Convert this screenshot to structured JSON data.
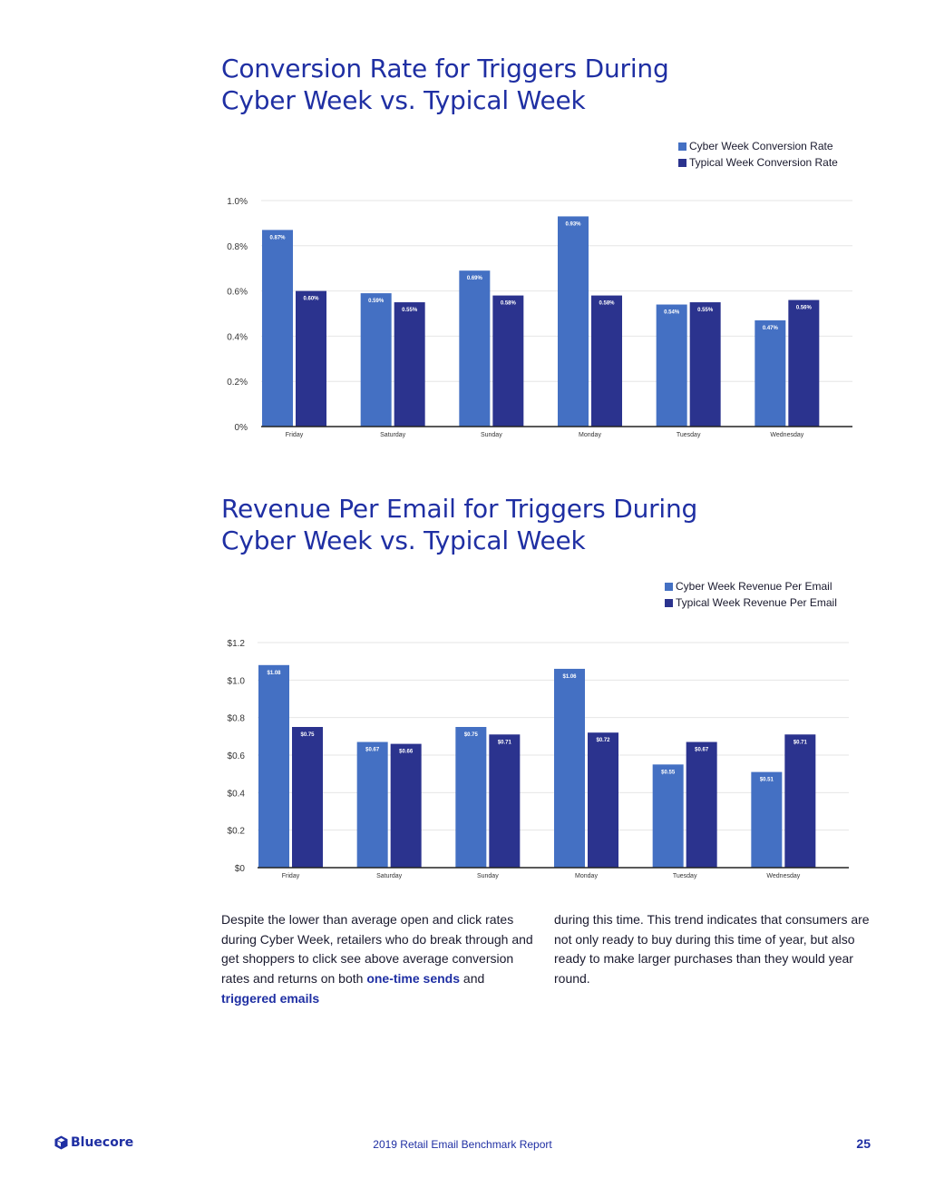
{
  "colors": {
    "cyber": "#4470c3",
    "typical": "#2b338e",
    "title": "#1f2fa3",
    "grid": "#e6e6e6"
  },
  "chart_data": [
    {
      "type": "bar",
      "title": "Conversion Rate for Triggers During Cyber Week vs. Typical Week",
      "categories": [
        "Friday",
        "Saturday",
        "Sunday",
        "Monday",
        "Tuesday",
        "Wednesday"
      ],
      "series": [
        {
          "name": "Cyber Week Conversion Rate",
          "values": [
            0.87,
            0.59,
            0.69,
            0.93,
            0.54,
            0.47
          ],
          "labels": [
            "0.87%",
            "0.59%",
            "0.69%",
            "0.93%",
            "0.54%",
            "0.47%"
          ]
        },
        {
          "name": "Typical Week Conversion Rate",
          "values": [
            0.6,
            0.55,
            0.58,
            0.58,
            0.55,
            0.56
          ],
          "labels": [
            "0.60%",
            "0.55%",
            "0.58%",
            "0.58%",
            "0.55%",
            "0.56%"
          ]
        }
      ],
      "yticks": [
        "0%",
        "0.2%",
        "0.4%",
        "0.6%",
        "0.8%",
        "1.0%"
      ],
      "ylim": [
        0,
        1.0
      ],
      "xlabel": "",
      "ylabel": "",
      "legend": "top-right",
      "grid": true
    },
    {
      "type": "bar",
      "title": "Revenue Per Email for Triggers During Cyber Week vs. Typical Week",
      "categories": [
        "Friday",
        "Saturday",
        "Sunday",
        "Monday",
        "Tuesday",
        "Wednesday"
      ],
      "series": [
        {
          "name": "Cyber Week Revenue Per Email",
          "values": [
            1.08,
            0.67,
            0.75,
            1.06,
            0.55,
            0.51
          ],
          "labels": [
            "$1.08",
            "$0.67",
            "$0.75",
            "$1.06",
            "$0.55",
            "$0.51"
          ]
        },
        {
          "name": "Typical Week Revenue Per Email",
          "values": [
            0.75,
            0.66,
            0.71,
            0.72,
            0.67,
            0.71
          ],
          "labels": [
            "$0.75",
            "$0.66",
            "$0.71",
            "$0.72",
            "$0.67",
            "$0.71"
          ]
        }
      ],
      "yticks": [
        "$0",
        "$0.2",
        "$0.4",
        "$0.6",
        "$0.8",
        "$1.0",
        "$1.2"
      ],
      "ylim": [
        0,
        1.2
      ],
      "xlabel": "",
      "ylabel": "",
      "legend": "top-right",
      "grid": true
    }
  ],
  "titles": {
    "chart1_line1": "Conversion Rate for Triggers During",
    "chart1_line2": "Cyber Week vs. Typical Week",
    "chart2_line1": "Revenue Per Email for Triggers During",
    "chart2_line2": "Cyber Week vs. Typical Week"
  },
  "legend1": {
    "cyber": "Cyber Week Conversion Rate",
    "typical": "Typical Week Conversion Rate"
  },
  "legend2": {
    "cyber": "Cyber Week Revenue Per Email",
    "typical": "Typical Week Revenue Per Email"
  },
  "body": {
    "col1_text": "Despite the lower than average open and click rates during Cyber Week, retailers who do break through and get shoppers to click see above average conversion rates and returns on both",
    "link1": "one-time sends",
    "and": "and",
    "link2": "triggered emails",
    "col2_text": "during this time. This trend indicates that consumers are not only ready to buy during this time of year, but also ready to make larger purchases than they would year round."
  },
  "footer": {
    "brand": "Bluecore",
    "report": "2019 Retail Email Benchmark Report",
    "page": "25"
  }
}
